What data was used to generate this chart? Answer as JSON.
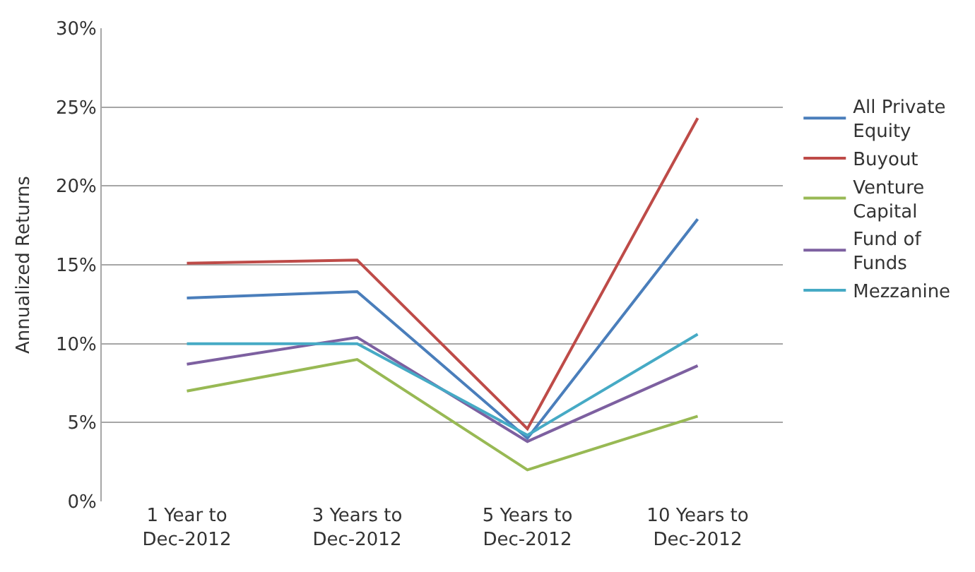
{
  "chart_data": {
    "type": "line",
    "ylabel": "Annualized Returns",
    "categories": [
      "1 Year to Dec-2012",
      "3 Years to Dec-2012",
      "5 Years to Dec-2012",
      "10 Years to Dec-2012"
    ],
    "series": [
      {
        "name": "All Private Equity",
        "color": "#4a7ebb",
        "values": [
          12.9,
          13.3,
          4.0,
          17.9
        ]
      },
      {
        "name": "Buyout",
        "color": "#be4b48",
        "values": [
          15.1,
          15.3,
          4.6,
          24.3
        ]
      },
      {
        "name": "Venture Capital",
        "color": "#98b954",
        "values": [
          7.0,
          9.0,
          2.0,
          5.4
        ]
      },
      {
        "name": "Fund of Funds",
        "color": "#7d60a0",
        "values": [
          8.7,
          10.4,
          3.8,
          8.6
        ]
      },
      {
        "name": "Mezzanine",
        "color": "#46aac5",
        "values": [
          10.0,
          10.0,
          4.2,
          10.6
        ]
      }
    ],
    "ylim": [
      0,
      30
    ],
    "yticks": [
      {
        "value": 0,
        "label": "0%"
      },
      {
        "value": 5,
        "label": "5%"
      },
      {
        "value": 10,
        "label": "10%"
      },
      {
        "value": 15,
        "label": "15%"
      },
      {
        "value": 20,
        "label": "20%"
      },
      {
        "value": 25,
        "label": "25%"
      },
      {
        "value": 30,
        "label": "30%"
      }
    ],
    "grid": "y",
    "legend": "right",
    "marker": "none",
    "line_style": "solid"
  }
}
